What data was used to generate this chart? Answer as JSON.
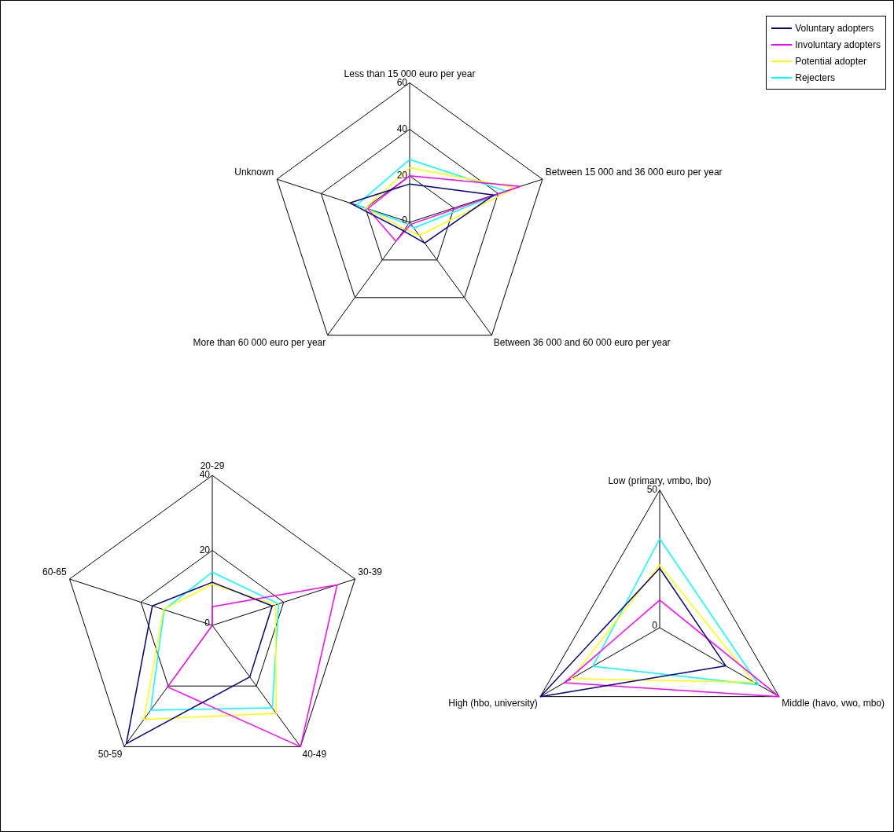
{
  "chart_data": [
    {
      "type": "radar",
      "categories": [
        "Less than 15 000 euro per year",
        "Between 15 000 and 36 000 euro per year",
        "Between 36 000 and 60 000 euro per year",
        "More than 60 000 euro per year",
        "Unknown"
      ],
      "ylim": [
        0,
        60
      ],
      "yticks": [
        0,
        20,
        40,
        60
      ],
      "grid": true,
      "marker": "none",
      "legend": "top right",
      "series": [
        {
          "name": "Voluntary adopters",
          "color": "#000080",
          "values": [
            16.5,
            38,
            11,
            4.5,
            27
          ]
        },
        {
          "name": "Involuntary adopters",
          "color": "#ff00ff",
          "values": [
            20,
            50,
            1,
            10,
            19
          ]
        },
        {
          "name": "Potential adopter",
          "color": "#ffff00",
          "values": [
            23.5,
            48,
            7,
            3.5,
            20
          ]
        },
        {
          "name": "Rejecters",
          "color": "#00ffff",
          "values": [
            27,
            43.5,
            3,
            1,
            24
          ]
        }
      ]
    },
    {
      "type": "radar",
      "categories": [
        "20-29",
        "30-39",
        "40-49",
        "50-59",
        "60-65"
      ],
      "ylim": [
        0,
        40
      ],
      "yticks": [
        0,
        20,
        40
      ],
      "grid": true,
      "marker": "none",
      "series": [
        {
          "color": "#000080",
          "values": [
            11.5,
            16.8,
            17,
            39,
            16.8
          ]
        },
        {
          "color": "#ff00ff",
          "values": [
            5,
            35,
            40,
            20.3,
            0
          ]
        },
        {
          "color": "#ffff00",
          "values": [
            11,
            17.7,
            29,
            31,
            13.7
          ]
        },
        {
          "color": "#00ffff",
          "values": [
            14.2,
            18.6,
            27.2,
            28,
            13.5
          ]
        }
      ]
    },
    {
      "type": "radar",
      "categories": [
        "Low (primary, vmbo, lbo)",
        "Middle (havo, vwo, mbo)",
        "High (hbo, university)"
      ],
      "ylim": [
        0,
        50
      ],
      "yticks": [
        0,
        50
      ],
      "grid": true,
      "marker": "none",
      "series": [
        {
          "color": "#000080",
          "values": [
            21.6,
            27.7,
            50
          ]
        },
        {
          "color": "#ff00ff",
          "values": [
            10,
            50,
            40
          ]
        },
        {
          "color": "#ffff00",
          "values": [
            22.8,
            39.6,
            37
          ]
        },
        {
          "color": "#00ffff",
          "values": [
            32.3,
            41.5,
            28
          ]
        }
      ]
    }
  ]
}
